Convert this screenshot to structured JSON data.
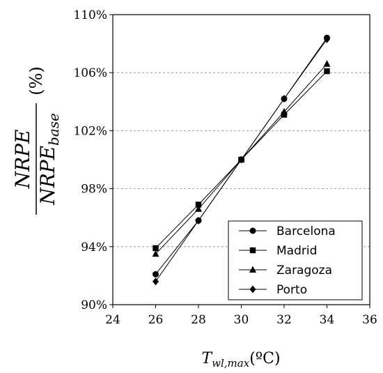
{
  "chart_data": {
    "type": "line",
    "x": [
      26,
      28,
      30,
      32,
      34
    ],
    "x_ticks": [
      "24",
      "26",
      "28",
      "30",
      "32",
      "34",
      "36"
    ],
    "y_ticks": [
      "90%",
      "94%",
      "98%",
      "102%",
      "106%",
      "110%"
    ],
    "xlim": [
      24,
      36
    ],
    "ylim": [
      90,
      110
    ],
    "grid": "horizontal-dashed",
    "legend_position": "bottom-right",
    "xlabel": {
      "main": "T",
      "sub": "wl,max",
      "unit": "(ºC)"
    },
    "ylabel": {
      "numerator": "NRPE",
      "denominator_main": "NRPE",
      "denominator_sub": "base",
      "unit": "(%)"
    },
    "series": [
      {
        "name": "Barcelona",
        "marker": "circle",
        "values": [
          92.1,
          95.8,
          100.0,
          104.2,
          108.4
        ]
      },
      {
        "name": "Madrid",
        "marker": "square",
        "values": [
          93.9,
          96.9,
          100.0,
          103.1,
          106.1
        ]
      },
      {
        "name": "Zaragoza",
        "marker": "triangle",
        "values": [
          93.5,
          96.6,
          100.0,
          103.3,
          106.6
        ]
      },
      {
        "name": "Porto",
        "marker": "diamond",
        "values": [
          91.6,
          95.8,
          100.0,
          104.2,
          108.3
        ]
      }
    ]
  }
}
